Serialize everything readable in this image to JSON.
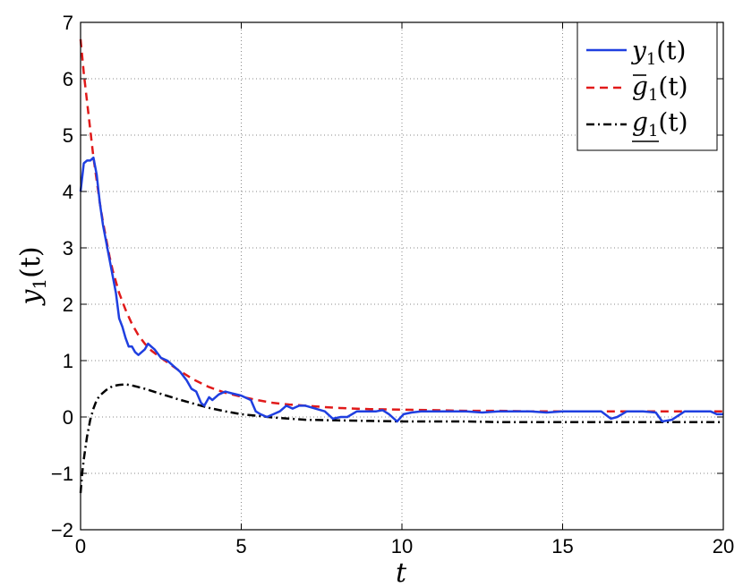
{
  "chart_data": {
    "type": "line",
    "xlabel": "t",
    "ylabel": "y1(t)",
    "xlim": [
      0,
      20
    ],
    "ylim": [
      -2,
      7
    ],
    "xticks": [
      0,
      5,
      10,
      15,
      20
    ],
    "yticks": [
      -2,
      -1,
      0,
      1,
      2,
      3,
      4,
      5,
      6,
      7
    ],
    "grid": true,
    "legend_position": "top-right",
    "series": [
      {
        "name": "y1(t)",
        "color": "#1f3fe0",
        "style": "solid",
        "x": [
          0,
          0.1,
          0.2,
          0.3,
          0.4,
          0.5,
          0.6,
          0.7,
          0.8,
          0.9,
          1.0,
          1.1,
          1.2,
          1.3,
          1.4,
          1.5,
          1.6,
          1.7,
          1.8,
          1.9,
          2.0,
          2.1,
          2.2,
          2.3,
          2.5,
          2.7,
          2.9,
          3.1,
          3.3,
          3.45,
          3.6,
          3.75,
          3.85,
          4.0,
          4.1,
          4.3,
          4.5,
          4.7,
          5.0,
          5.3,
          5.45,
          5.6,
          5.8,
          6.0,
          6.2,
          6.4,
          6.6,
          6.8,
          7.0,
          7.3,
          7.6,
          7.85,
          8.1,
          8.3,
          8.6,
          8.9,
          9.2,
          9.4,
          9.6,
          9.85,
          10.05,
          10.3,
          10.6,
          11.0,
          11.5,
          12.0,
          12.5,
          13.0,
          13.5,
          14.0,
          14.5,
          15.0,
          15.5,
          16.0,
          16.2,
          16.5,
          16.7,
          17.0,
          17.5,
          17.9,
          18.1,
          18.4,
          18.8,
          19.2,
          19.6,
          19.8,
          20.0
        ],
        "y": [
          4.0,
          4.5,
          4.55,
          4.55,
          4.6,
          4.3,
          3.8,
          3.4,
          3.1,
          2.8,
          2.5,
          2.2,
          1.75,
          1.6,
          1.4,
          1.25,
          1.25,
          1.15,
          1.1,
          1.15,
          1.2,
          1.3,
          1.25,
          1.2,
          1.05,
          1.0,
          0.9,
          0.8,
          0.65,
          0.5,
          0.45,
          0.25,
          0.2,
          0.35,
          0.3,
          0.4,
          0.45,
          0.42,
          0.38,
          0.3,
          0.1,
          0.05,
          0.0,
          0.05,
          0.1,
          0.2,
          0.15,
          0.2,
          0.2,
          0.15,
          0.1,
          -0.03,
          0.0,
          0.0,
          0.1,
          0.1,
          0.1,
          0.12,
          0.05,
          -0.08,
          0.05,
          0.08,
          0.1,
          0.1,
          0.1,
          0.1,
          0.08,
          0.1,
          0.1,
          0.1,
          0.08,
          0.1,
          0.1,
          0.1,
          0.1,
          -0.03,
          0.0,
          0.1,
          0.1,
          0.08,
          -0.08,
          -0.05,
          0.1,
          0.1,
          0.1,
          0.05,
          0.05
        ]
      },
      {
        "name": "g1(t) upper",
        "color": "#e11a1a",
        "style": "dashed",
        "x": [
          0,
          0.1,
          0.2,
          0.3,
          0.4,
          0.5,
          0.6,
          0.7,
          0.8,
          0.9,
          1.0,
          1.2,
          1.4,
          1.6,
          1.8,
          2.0,
          2.2,
          2.5,
          2.8,
          3.0,
          3.5,
          4.0,
          4.5,
          5.0,
          5.5,
          6.0,
          6.5,
          7.0,
          7.5,
          8.0,
          8.5,
          9.0,
          10,
          11,
          12,
          13,
          14,
          15,
          16,
          17,
          18,
          19,
          20
        ],
        "y": [
          6.7,
          6.1,
          5.6,
          5.1,
          4.6,
          4.2,
          3.8,
          3.45,
          3.15,
          2.85,
          2.6,
          2.2,
          1.9,
          1.65,
          1.45,
          1.3,
          1.18,
          1.05,
          0.93,
          0.85,
          0.67,
          0.53,
          0.43,
          0.36,
          0.3,
          0.25,
          0.22,
          0.2,
          0.18,
          0.16,
          0.15,
          0.14,
          0.13,
          0.12,
          0.11,
          0.11,
          0.1,
          0.1,
          0.1,
          0.1,
          0.1,
          0.1,
          0.1
        ]
      },
      {
        "name": "g1(t) lower",
        "color": "#000000",
        "style": "dashdot",
        "x": [
          0,
          0.05,
          0.1,
          0.2,
          0.3,
          0.4,
          0.5,
          0.6,
          0.8,
          1.0,
          1.2,
          1.4,
          1.6,
          1.8,
          2.0,
          2.5,
          3.0,
          3.5,
          4.0,
          4.5,
          5.0,
          5.5,
          6.0,
          6.5,
          7.0,
          8.0,
          9.0,
          10,
          11,
          12,
          13,
          14,
          15,
          16,
          17,
          18,
          19,
          20
        ],
        "y": [
          -1.35,
          -1.0,
          -0.75,
          -0.35,
          -0.05,
          0.15,
          0.3,
          0.38,
          0.48,
          0.55,
          0.57,
          0.58,
          0.56,
          0.53,
          0.5,
          0.41,
          0.32,
          0.24,
          0.16,
          0.1,
          0.05,
          0.02,
          -0.01,
          -0.03,
          -0.05,
          -0.06,
          -0.07,
          -0.08,
          -0.08,
          -0.08,
          -0.09,
          -0.09,
          -0.09,
          -0.09,
          -0.09,
          -0.09,
          -0.09,
          -0.09
        ]
      }
    ]
  },
  "legend": {
    "entries": [
      {
        "main": "y",
        "sub": "1",
        "arg": "(t)",
        "accent": "none"
      },
      {
        "main": "g",
        "sub": "1",
        "arg": "(t)",
        "accent": "overline"
      },
      {
        "main": "g",
        "sub": "1",
        "arg": "(t)",
        "accent": "underline"
      }
    ]
  },
  "axis_text": {
    "xlabel": "t",
    "ylabel_main": "y",
    "ylabel_sub": "1",
    "ylabel_arg": "(t)"
  }
}
